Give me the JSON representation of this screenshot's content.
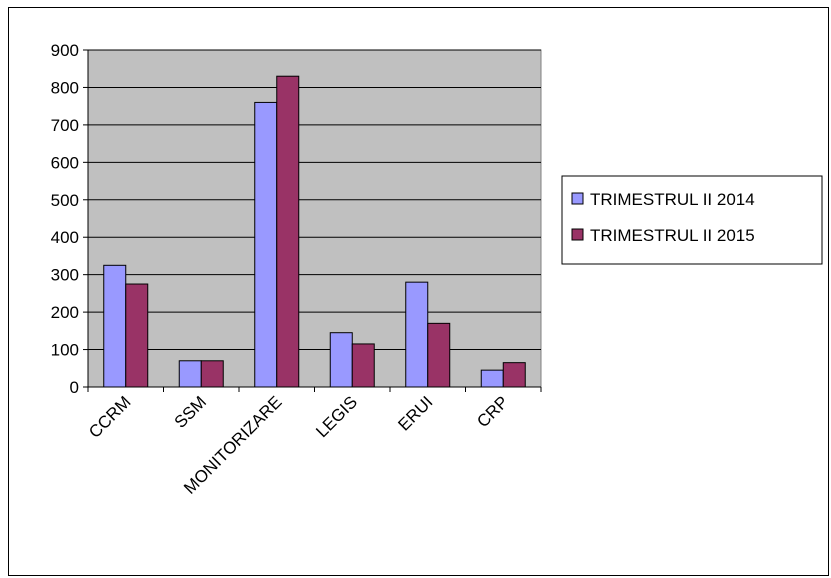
{
  "chart_data": {
    "type": "bar",
    "categories": [
      "CCRM",
      "SSM",
      "MONITORIZARE",
      "LEGIS",
      "ERUI",
      "CRP"
    ],
    "series": [
      {
        "name": "TRIMESTRUL II 2014",
        "color": "#9999ff",
        "values": [
          325,
          70,
          760,
          145,
          280,
          45
        ]
      },
      {
        "name": "TRIMESTRUL II 2015",
        "color": "#993366",
        "values": [
          275,
          70,
          830,
          115,
          170,
          65
        ]
      }
    ],
    "ylim": [
      0,
      900
    ],
    "yticks": [
      "0",
      "100",
      "200",
      "300",
      "400",
      "500",
      "600",
      "700",
      "800",
      "900"
    ],
    "grid": true,
    "plot_background": "#c0c0c0",
    "legend_position": "right"
  }
}
